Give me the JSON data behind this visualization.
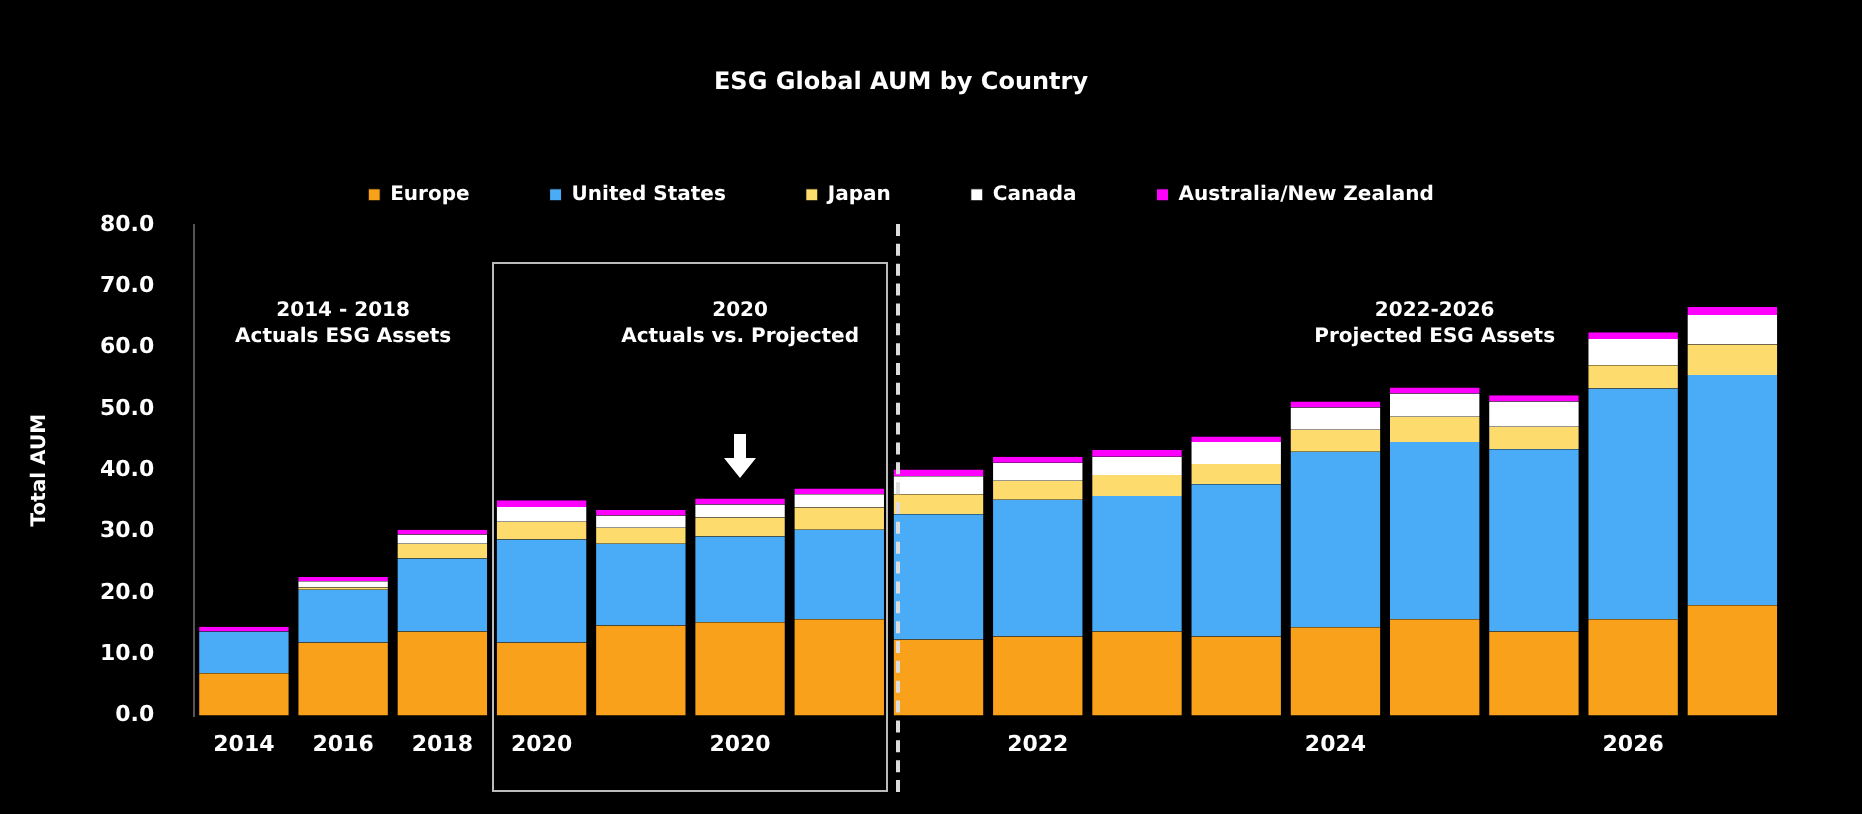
{
  "chart_data": {
    "type": "bar",
    "title": "ESG Global AUM by Country",
    "ylabel": "Total AUM",
    "stacked": true,
    "categories": [
      "2014",
      "2016",
      "2018",
      "2020",
      null,
      "2020",
      null,
      null,
      "2022",
      null,
      null,
      "2024",
      null,
      null,
      "2026",
      null
    ],
    "series": [
      {
        "name": "Europe",
        "color": "#f9a11b",
        "values": [
          6.9,
          11.9,
          13.7,
          11.9,
          14.7,
          15.2,
          15.7,
          12.4,
          12.9,
          13.7,
          12.9,
          14.4,
          15.7,
          13.7,
          15.7,
          18.0
        ]
      },
      {
        "name": "United States",
        "color": "#4aabf7",
        "values": [
          6.8,
          8.6,
          11.9,
          16.8,
          13.3,
          14.0,
          14.6,
          20.4,
          22.3,
          22.1,
          24.8,
          28.6,
          28.9,
          29.7,
          37.6,
          37.5
        ]
      },
      {
        "name": "Japan",
        "color": "#fddb6d",
        "values": [
          0,
          0.4,
          2.4,
          2.9,
          2.6,
          3.1,
          3.6,
          3.3,
          3.1,
          3.4,
          3.3,
          3.6,
          4.1,
          3.7,
          3.8,
          5.0
        ]
      },
      {
        "name": "Canada",
        "color": "#ffffff",
        "values": [
          0,
          1.0,
          1.5,
          2.4,
          2.0,
          2.1,
          2.2,
          2.9,
          2.9,
          3.0,
          3.6,
          3.6,
          3.8,
          4.1,
          4.3,
          4.8
        ]
      },
      {
        "name": "Australia/New Zealand",
        "color": "#ff00ff",
        "values": [
          0.8,
          0.7,
          0.8,
          1.1,
          0.9,
          1.0,
          0.9,
          1.1,
          1.0,
          1.1,
          0.9,
          1.0,
          1.0,
          1.0,
          1.1,
          1.3
        ]
      }
    ],
    "ylim": [
      0,
      80
    ],
    "yticks": [
      {
        "value": 0,
        "label": "0.0"
      },
      {
        "value": 10,
        "label": "10.0"
      },
      {
        "value": 20,
        "label": "20.0"
      },
      {
        "value": 30,
        "label": "30.0"
      },
      {
        "value": 40,
        "label": "40.0"
      },
      {
        "value": 50,
        "label": "50.0"
      },
      {
        "value": 60,
        "label": "60.0"
      },
      {
        "value": 70,
        "label": "70.0"
      },
      {
        "value": 80,
        "label": "80.0"
      }
    ],
    "grid": false,
    "legend": "top",
    "annotations": [
      "2014 - 2018\nActuals ESG Assets",
      "2020\nActuals vs. Projected",
      "2022-2026\nProjected ESG Assets"
    ]
  }
}
